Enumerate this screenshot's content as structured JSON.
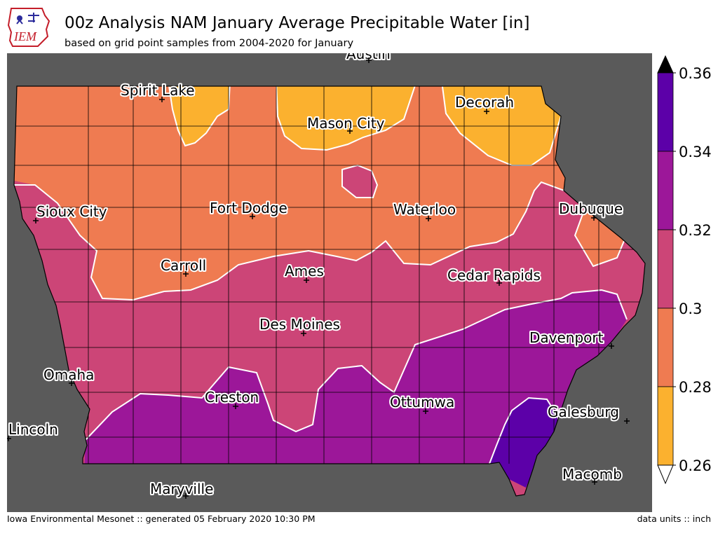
{
  "header": {
    "title": "00z Analysis NAM January Average Precipitable Water [in]",
    "subtitle": "based on grid point samples from 2004-2020 for January",
    "logo_text": "IEM"
  },
  "footer": {
    "left": "Iowa Environmental Mesonet :: generated 05 February 2020 10:30 PM",
    "right": "data units :: inch"
  },
  "colors": {
    "background": "#5a5a5a",
    "lt_028": "#fbb12f",
    "r028_030": "#ef7b51",
    "r030_032": "#cc4577",
    "r032_034": "#9c1799",
    "gt_034": "#5c00a8",
    "over_arrow": "#000000",
    "under_arrow": "#ffffff"
  },
  "colorbar": {
    "ticks": [
      "0.36",
      "0.34",
      "0.32",
      "0.3",
      "0.28",
      "0.26"
    ],
    "bins": [
      {
        "range": "0.34-0.36",
        "color": "#5c00a8"
      },
      {
        "range": "0.32-0.34",
        "color": "#9c1799"
      },
      {
        "range": "0.30-0.32",
        "color": "#cc4577"
      },
      {
        "range": "0.28-0.30",
        "color": "#ef7b51"
      },
      {
        "range": "0.26-0.28",
        "color": "#fbb12f"
      }
    ]
  },
  "cities": [
    "Austin",
    "Spirit Lake",
    "Mason City",
    "Decorah",
    "Sioux City",
    "Fort Dodge",
    "Waterloo",
    "Dubuque",
    "Carroll",
    "Ames",
    "Cedar Rapids",
    "Des Moines",
    "Davenport",
    "Omaha",
    "Creston",
    "Ottumwa",
    "Galesburg",
    "Lincoln",
    "Macomb",
    "Maryville"
  ]
}
